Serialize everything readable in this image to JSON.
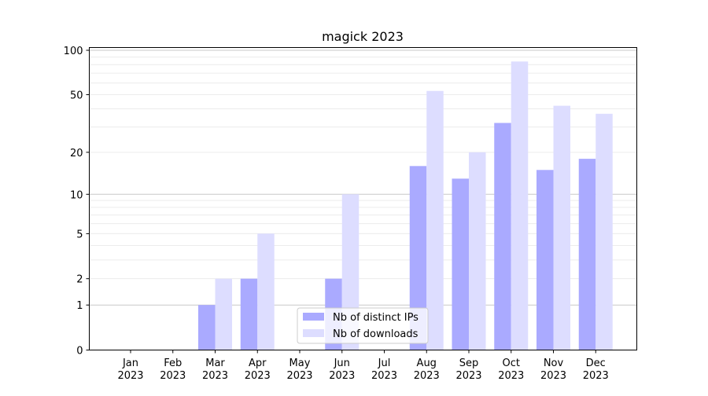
{
  "chart_data": {
    "type": "bar",
    "title": "magick 2023",
    "xlabel": "",
    "ylabel": "",
    "yscale": "log10(1+y)",
    "ylim": [
      0,
      105
    ],
    "yticks": [
      0,
      1,
      2,
      5,
      10,
      20,
      50,
      100
    ],
    "grid": true,
    "legend_position": "bottom-center",
    "categories": [
      "Jan\n2023",
      "Feb\n2023",
      "Mar\n2023",
      "Apr\n2023",
      "May\n2023",
      "Jun\n2023",
      "Jul\n2023",
      "Aug\n2023",
      "Sep\n2023",
      "Oct\n2023",
      "Nov\n2023",
      "Dec\n2023"
    ],
    "series": [
      {
        "name": "Nb of distinct IPs",
        "color": "#aaaaff",
        "values": [
          0,
          0,
          1,
          2,
          0,
          2,
          0,
          16,
          13,
          32,
          15,
          18
        ]
      },
      {
        "name": "Nb of downloads",
        "color": "#ddddff",
        "values": [
          0,
          0,
          2,
          5,
          0,
          10,
          0,
          53,
          20,
          84,
          42,
          37
        ]
      }
    ]
  }
}
